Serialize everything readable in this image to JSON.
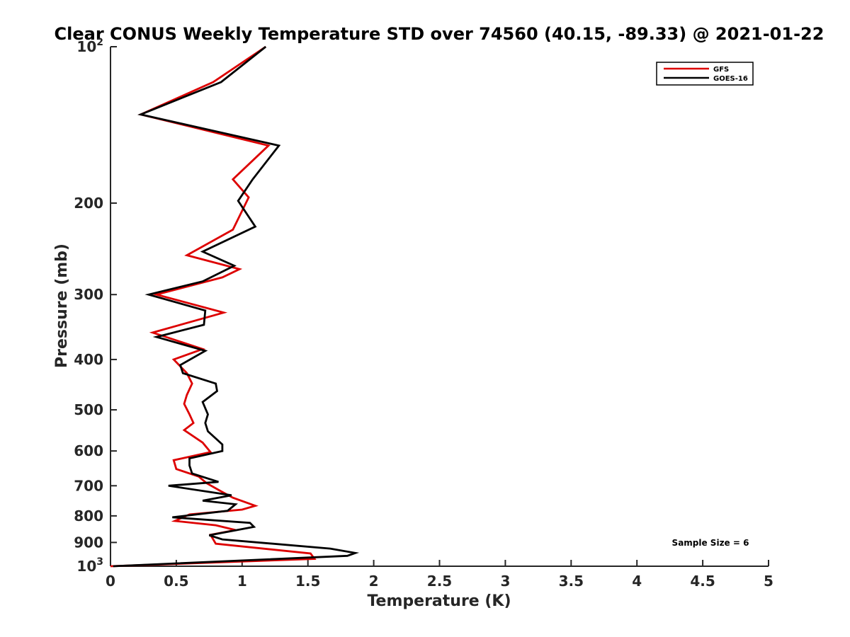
{
  "chart_data": {
    "type": "line",
    "title": "Clear CONUS Weekly Temperature STD over 74560 (40.15, -89.33) @ 2021-01-22",
    "xlabel": "Temperature (K)",
    "ylabel": "Pressure (mb)",
    "xlim": [
      0,
      5
    ],
    "ylim": [
      100,
      1000
    ],
    "y_scale": "log",
    "y_reversed": true,
    "grid": false,
    "legend_position": "top-right",
    "x_ticks": [
      0,
      0.5,
      1,
      1.5,
      2,
      2.5,
      3,
      3.5,
      4,
      4.5,
      5
    ],
    "x_tick_labels": [
      "0",
      "0.5",
      "1",
      "1.5",
      "2",
      "2.5",
      "3",
      "3.5",
      "4",
      "4.5",
      "5"
    ],
    "y_ticks": [
      100,
      200,
      300,
      400,
      500,
      600,
      700,
      800,
      900,
      1000
    ],
    "y_tick_labels": [
      {
        "base": "10",
        "exp": "2"
      },
      {
        "base": "200",
        "exp": ""
      },
      {
        "base": "300",
        "exp": ""
      },
      {
        "base": "400",
        "exp": ""
      },
      {
        "base": "500",
        "exp": ""
      },
      {
        "base": "600",
        "exp": ""
      },
      {
        "base": "700",
        "exp": ""
      },
      {
        "base": "800",
        "exp": ""
      },
      {
        "base": "900",
        "exp": ""
      },
      {
        "base": "10",
        "exp": "3"
      }
    ],
    "annotation": "Sample Size = 6",
    "series": [
      {
        "name": "GFS",
        "color": "#dd0000",
        "points": [
          [
            1.18,
            100
          ],
          [
            0.78,
            117
          ],
          [
            0.23,
            135
          ],
          [
            1.2,
            155
          ],
          [
            0.93,
            180
          ],
          [
            1.05,
            195
          ],
          [
            0.93,
            225
          ],
          [
            0.58,
            252
          ],
          [
            0.98,
            268
          ],
          [
            0.85,
            278
          ],
          [
            0.35,
            300
          ],
          [
            0.86,
            325
          ],
          [
            0.32,
            355
          ],
          [
            0.7,
            382
          ],
          [
            0.48,
            400
          ],
          [
            0.58,
            425
          ],
          [
            0.62,
            445
          ],
          [
            0.58,
            468
          ],
          [
            0.56,
            487
          ],
          [
            0.6,
            510
          ],
          [
            0.63,
            530
          ],
          [
            0.56,
            547
          ],
          [
            0.7,
            578
          ],
          [
            0.76,
            603
          ],
          [
            0.48,
            625
          ],
          [
            0.5,
            650
          ],
          [
            0.67,
            672
          ],
          [
            0.73,
            692
          ],
          [
            0.83,
            715
          ],
          [
            0.93,
            738
          ],
          [
            1.1,
            765
          ],
          [
            1.0,
            778
          ],
          [
            0.6,
            795
          ],
          [
            0.49,
            818
          ],
          [
            0.8,
            834
          ],
          [
            0.95,
            852
          ],
          [
            0.76,
            870
          ],
          [
            0.8,
            905
          ],
          [
            1.52,
            945
          ],
          [
            1.55,
            968
          ],
          [
            0.0,
            1000
          ]
        ]
      },
      {
        "name": "GOES-16",
        "color": "#000000",
        "points": [
          [
            1.18,
            100
          ],
          [
            0.84,
            117
          ],
          [
            0.23,
            135
          ],
          [
            1.28,
            155
          ],
          [
            1.08,
            180
          ],
          [
            0.97,
            198
          ],
          [
            1.1,
            222
          ],
          [
            0.7,
            248
          ],
          [
            0.94,
            264
          ],
          [
            0.7,
            283
          ],
          [
            0.29,
            300
          ],
          [
            0.72,
            322
          ],
          [
            0.71,
            343
          ],
          [
            0.35,
            362
          ],
          [
            0.72,
            385
          ],
          [
            0.53,
            410
          ],
          [
            0.55,
            425
          ],
          [
            0.8,
            445
          ],
          [
            0.81,
            460
          ],
          [
            0.7,
            483
          ],
          [
            0.74,
            510
          ],
          [
            0.72,
            530
          ],
          [
            0.74,
            550
          ],
          [
            0.85,
            583
          ],
          [
            0.85,
            600
          ],
          [
            0.6,
            620
          ],
          [
            0.6,
            640
          ],
          [
            0.62,
            663
          ],
          [
            0.82,
            688
          ],
          [
            0.44,
            700
          ],
          [
            0.92,
            730
          ],
          [
            0.7,
            748
          ],
          [
            0.95,
            760
          ],
          [
            0.89,
            782
          ],
          [
            0.47,
            805
          ],
          [
            1.06,
            825
          ],
          [
            1.09,
            840
          ],
          [
            0.75,
            872
          ],
          [
            0.85,
            888
          ],
          [
            1.67,
            925
          ],
          [
            1.86,
            943
          ],
          [
            1.8,
            955
          ],
          [
            0.02,
            1000
          ]
        ]
      }
    ]
  }
}
